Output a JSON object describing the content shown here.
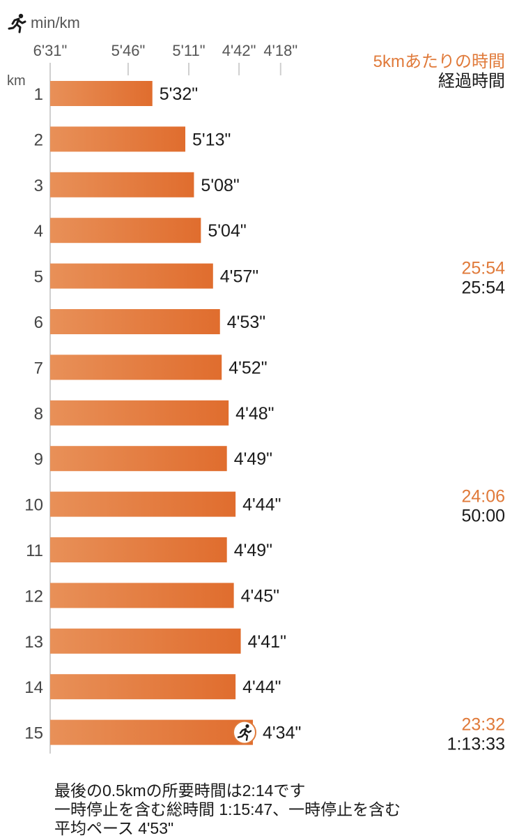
{
  "header": {
    "unit_label": "min/km",
    "icon": "runner-icon"
  },
  "legend": {
    "split_label": "5kmあたりの時間",
    "elapsed_label": "経過時間"
  },
  "colors": {
    "bar_start": "#e89058",
    "bar_end": "#e06d2e",
    "accent": "#e07a3a",
    "axis": "#cfcfcf"
  },
  "chart_data": {
    "type": "bar",
    "orientation": "horizontal",
    "ylabel": "km",
    "x_ticks": [
      "6'31\"",
      "5'46\"",
      "5'11\"",
      "4'42\"",
      "4'18\""
    ],
    "x_tick_seconds": [
      391,
      346,
      311,
      282,
      258
    ],
    "categories": [
      "1",
      "2",
      "3",
      "4",
      "5",
      "6",
      "7",
      "8",
      "9",
      "10",
      "11",
      "12",
      "13",
      "14",
      "15"
    ],
    "values_seconds": [
      332,
      313,
      308,
      304,
      297,
      293,
      292,
      288,
      289,
      284,
      289,
      285,
      281,
      284,
      274
    ],
    "labels": [
      "5'32\"",
      "5'13\"",
      "5'08\"",
      "5'04\"",
      "4'57\"",
      "4'53\"",
      "4'52\"",
      "4'48\"",
      "4'49\"",
      "4'44\"",
      "4'49\"",
      "4'45\"",
      "4'41\"",
      "4'44\"",
      "4'34\""
    ],
    "splits": [
      {
        "km": "5",
        "split": "25:54",
        "elapsed": "25:54"
      },
      {
        "km": "10",
        "split": "24:06",
        "elapsed": "50:00"
      },
      {
        "km": "15",
        "split": "23:32",
        "elapsed": "1:13:33"
      }
    ]
  },
  "footer": {
    "line1": "最後の0.5kmの所要時間は2:14です",
    "line2": "一時停止を含む総時間 1:15:47、一時停止を含む",
    "line3": "平均ペース 4'53\""
  }
}
